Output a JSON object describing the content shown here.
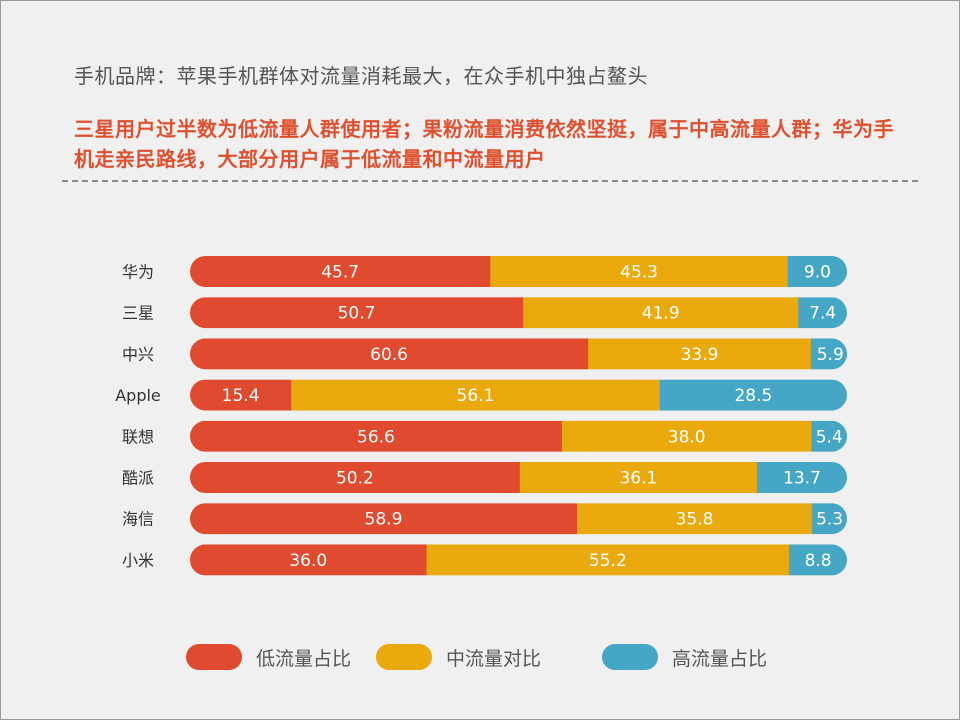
{
  "header": {
    "subtitle": "手机品牌：苹果手机群体对流量消耗最大，在众手机中独占鳌头",
    "headline": "三星用户过半数为低流量人群使用者；果粉流量消费依然坚挺，属于中高流量人群；华为手机走亲民路线，大部分用户属于低流量和中流量用户"
  },
  "colors": {
    "background": "#f0f0f0",
    "low": "#e04a2f",
    "mid": "#eaa90c",
    "high": "#45a6c6",
    "accent_text": "#e0502e"
  },
  "chart_data": {
    "type": "bar",
    "orientation": "horizontal",
    "stacked": true,
    "title": "",
    "xlabel": "",
    "ylabel": "",
    "xlim": [
      0,
      100
    ],
    "grid": false,
    "legend_position": "bottom",
    "categories": [
      "华为",
      "三星",
      "中兴",
      "Apple",
      "联想",
      "酷派",
      "海信",
      "小米"
    ],
    "series": [
      {
        "name": "低流量占比",
        "color": "#e04a2f",
        "values": [
          45.7,
          50.7,
          60.6,
          15.4,
          56.6,
          50.2,
          58.9,
          36.0
        ]
      },
      {
        "name": "中流量对比",
        "color": "#eaa90c",
        "values": [
          45.3,
          41.9,
          33.9,
          56.1,
          38.0,
          36.1,
          35.8,
          55.2
        ]
      },
      {
        "name": "高流量占比",
        "color": "#45a6c6",
        "values": [
          9.0,
          7.4,
          5.9,
          28.5,
          5.4,
          13.7,
          5.3,
          8.8
        ]
      }
    ],
    "value_labels": [
      [
        "45.7",
        "45.3",
        "9.0"
      ],
      [
        "50.7",
        "41.9",
        "7.4"
      ],
      [
        "60.6",
        "33.9",
        "5.9"
      ],
      [
        "15.4",
        "56.1",
        "28.5"
      ],
      [
        "56.6",
        "38.0",
        "5.4"
      ],
      [
        "50.2",
        "36.1",
        "13.7"
      ],
      [
        "58.9",
        "35.8",
        "5.3"
      ],
      [
        "36.0",
        "55.2",
        "8.8"
      ]
    ]
  }
}
